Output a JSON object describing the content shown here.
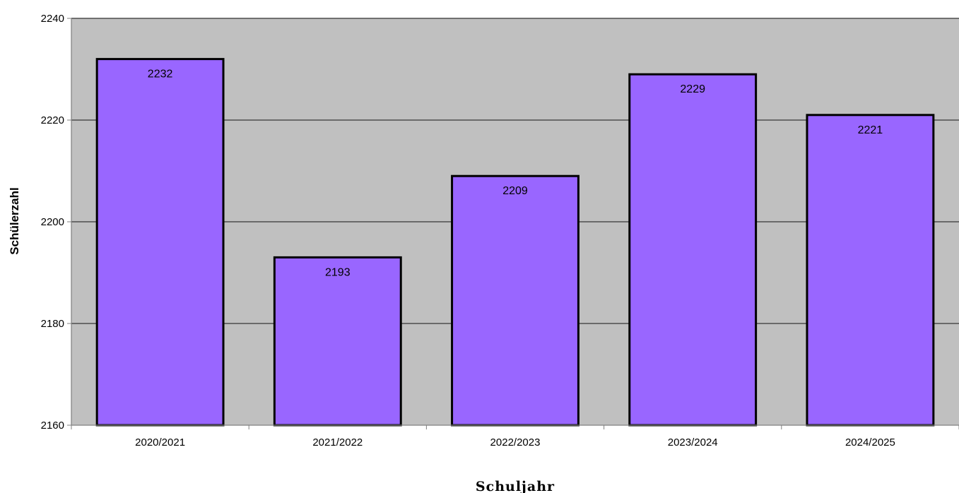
{
  "chart_data": {
    "type": "bar",
    "categories": [
      "2020/2021",
      "2021/2022",
      "2022/2023",
      "2023/2024",
      "2024/2025"
    ],
    "values": [
      2232,
      2193,
      2209,
      2229,
      2221
    ],
    "data_labels": [
      "2232",
      "2193",
      "2209",
      "2229",
      "2221"
    ],
    "title": "",
    "xlabel": "Schuljahr",
    "ylabel": "Schülerzahl",
    "ylim": [
      2160,
      2240
    ],
    "yticks": [
      2160,
      2180,
      2200,
      2220,
      2240
    ],
    "ytick_labels": [
      "2160",
      "2180",
      "2200",
      "2220",
      "2240"
    ],
    "grid": true,
    "legend": "none"
  },
  "colors": {
    "plot_background": "#c0c0c0",
    "bar_fill": "#9966ff",
    "bar_stroke": "#000000",
    "gridline": "#4d4d4d",
    "axis": "#808080"
  }
}
